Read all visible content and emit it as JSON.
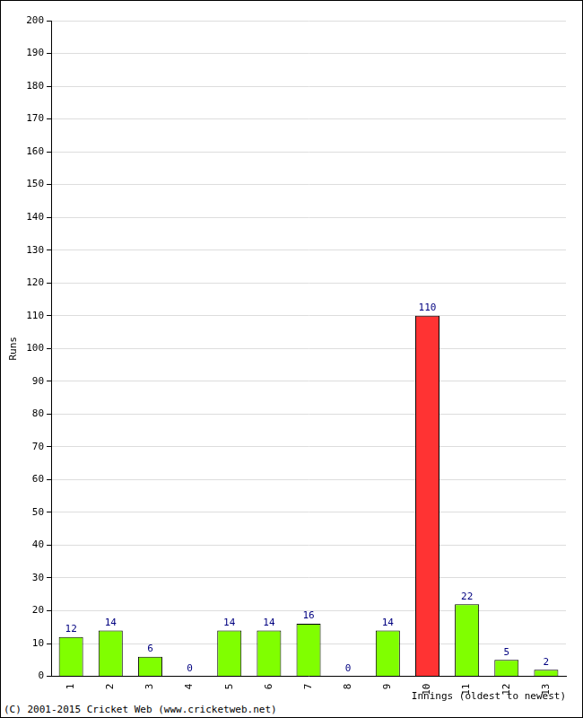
{
  "chart_data": {
    "type": "bar",
    "x_label": "Innings (oldest to newest)",
    "y_label": "Runs",
    "categories": [
      "1",
      "2",
      "3",
      "4",
      "5",
      "6",
      "7",
      "8",
      "9",
      "10",
      "11",
      "12",
      "13"
    ],
    "values": [
      12,
      14,
      6,
      0,
      14,
      14,
      16,
      0,
      14,
      110,
      22,
      5,
      2
    ],
    "colors": [
      "#80ff00",
      "#80ff00",
      "#80ff00",
      "#80ff00",
      "#80ff00",
      "#80ff00",
      "#80ff00",
      "#80ff00",
      "#80ff00",
      "#ff3333",
      "#80ff00",
      "#80ff00",
      "#80ff00"
    ],
    "ylim": [
      0,
      200
    ],
    "yticks": [
      0,
      10,
      20,
      30,
      40,
      50,
      60,
      70,
      80,
      90,
      100,
      110,
      120,
      130,
      140,
      150,
      160,
      170,
      180,
      190,
      200
    ],
    "grid": true,
    "data_labels": true,
    "annotations": [
      "(C) 2001-2015 Cricket Web (www.cricketweb.net)"
    ]
  }
}
